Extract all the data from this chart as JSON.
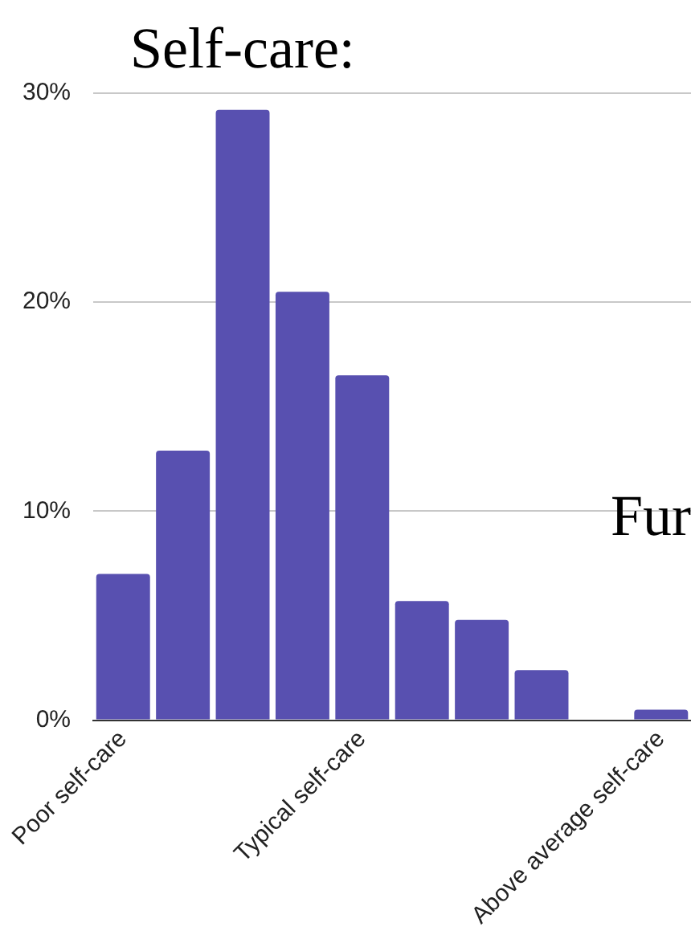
{
  "chart_data": {
    "type": "bar",
    "title": "Self-care:",
    "categories": [
      "Poor self-care",
      null,
      null,
      null,
      "Typical self-care",
      null,
      null,
      null,
      null,
      "Above average self-care"
    ],
    "values": [
      7.0,
      12.9,
      29.2,
      20.5,
      16.5,
      5.7,
      4.8,
      2.4,
      null,
      0.5
    ],
    "color": "#5850b0",
    "ylim": [
      0,
      30
    ],
    "yticks": [
      {
        "value": 0,
        "label": "0%"
      },
      {
        "value": 10,
        "label": "10%"
      },
      {
        "value": 20,
        "label": "20%"
      },
      {
        "value": 30,
        "label": "30%"
      }
    ],
    "grid": "y",
    "annotations": [
      "Fur"
    ]
  }
}
